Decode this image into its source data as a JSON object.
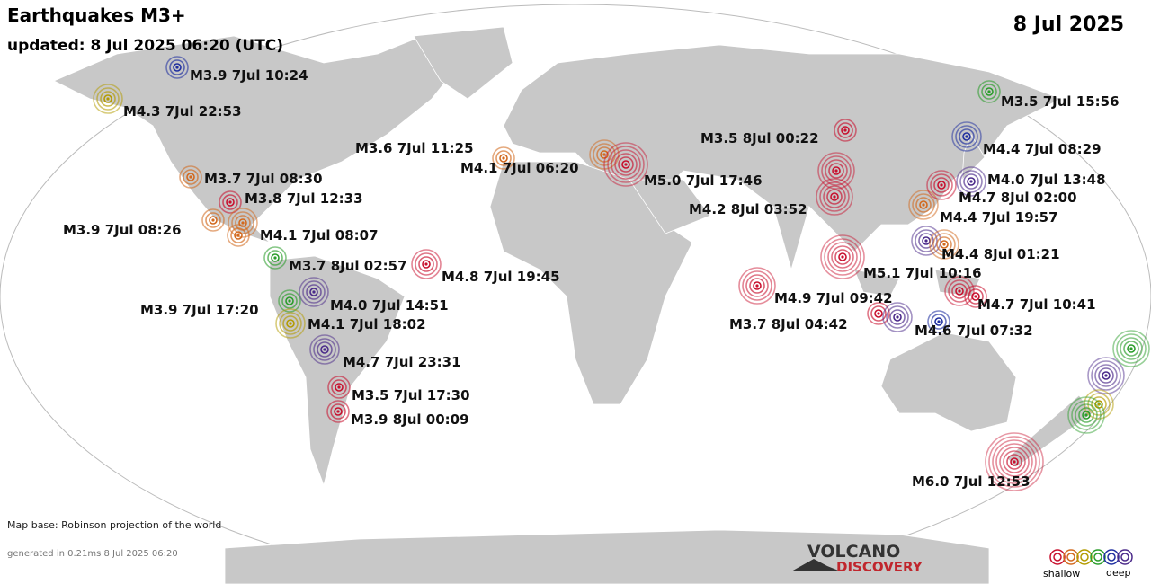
{
  "header": {
    "title": "Earthquakes M3+",
    "updated": "updated:  8 Jul 2025 06:20 (UTC)",
    "date": "8 Jul 2025"
  },
  "quakes": [
    "M3.9  7Jul 10:24",
    "M4.3  7Jul 22:53",
    "M3.7  7Jul 08:30",
    "M3.8  7Jul 12:33",
    "M3.9  7Jul 08:26",
    "M4.1  7Jul 08:07",
    "M3.7  8Jul 02:57",
    "M4.8  7Jul 19:45",
    "M4.0  7Jul 14:51",
    "M3.9  7Jul 17:20",
    "M4.1  7Jul 18:02",
    "M4.7  7Jul 23:31",
    "M3.5  7Jul 17:30",
    "M3.9  8Jul 00:09",
    "M3.6  7Jul 11:25",
    "M4.1  7Jul 06:20",
    "M5.0  7Jul 17:46",
    "M3.5  8Jul 00:22",
    "M4.2  8Jul 03:52",
    "M5.1  7Jul 10:16",
    "M4.9  7Jul 09:42",
    "M3.7  8Jul 04:42",
    "M4.6  7Jul 07:32",
    "M4.7  7Jul 10:41",
    "M4.4  8Jul 01:21",
    "M4.4  7Jul 19:57",
    "M4.7  8Jul 02:00",
    "M4.0  7Jul 13:48",
    "M4.4  7Jul 08:29",
    "M3.5  7Jul 15:56",
    "M6.0  7Jul 12:53"
  ],
  "footer": {
    "map_base": "Map base: Robinson projection of the world",
    "generated": "generated in 0.21ms  8 Jul 2025 06:20",
    "logo_top": "VOLCANO",
    "logo_bottom": "DISCOVERY",
    "legend_shallow": "shallow",
    "legend_deep": "deep"
  }
}
